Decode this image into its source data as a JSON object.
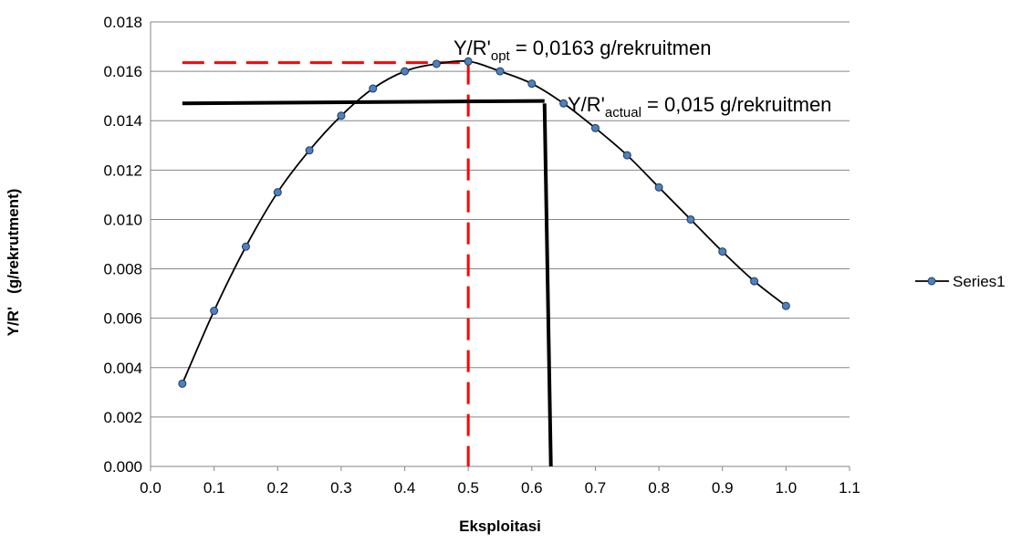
{
  "chart_data": {
    "type": "line",
    "title": "",
    "xlabel": "Eksploitasi",
    "ylabel": "Y/R'   (g/rekrutment)",
    "xlim": [
      0.0,
      1.1
    ],
    "ylim": [
      0.0,
      0.018
    ],
    "x_ticks": [
      "0.0",
      "0.1",
      "0.2",
      "0.3",
      "0.4",
      "0.5",
      "0.6",
      "0.7",
      "0.8",
      "0.9",
      "1.0",
      "1.1"
    ],
    "y_ticks": [
      "0.000",
      "0.002",
      "0.004",
      "0.006",
      "0.008",
      "0.010",
      "0.012",
      "0.014",
      "0.016",
      "0.018"
    ],
    "grid": "horizontal",
    "legend": "right",
    "series": [
      {
        "name": "Series1",
        "line_color": "#000000",
        "marker_color": "#4f81bd",
        "x": [
          0.05,
          0.1,
          0.15,
          0.2,
          0.25,
          0.3,
          0.35,
          0.4,
          0.45,
          0.5,
          0.55,
          0.6,
          0.65,
          0.7,
          0.75,
          0.8,
          0.85,
          0.9,
          0.95,
          1.0
        ],
        "y": [
          0.00335,
          0.0063,
          0.0089,
          0.0111,
          0.0128,
          0.0142,
          0.0153,
          0.016,
          0.0163,
          0.0164,
          0.016,
          0.0155,
          0.0147,
          0.0137,
          0.0126,
          0.0113,
          0.01,
          0.0087,
          0.0075,
          0.0065
        ]
      }
    ],
    "annotations": {
      "opt": {
        "prefix": "Y/R'",
        "sub": "opt",
        "suffix": " = 0,0163 g/rekruitmen",
        "color": "#ff0000",
        "horizontal": {
          "x1": 0.05,
          "x2": 0.5,
          "y": 0.01635
        },
        "vertical": {
          "x": 0.5,
          "y1": 0.01635,
          "y2": 0.0
        }
      },
      "actual": {
        "prefix": "Y/R'",
        "sub": "actual",
        "suffix": " = 0,015 g/rekruitmen",
        "color": "#000000",
        "horizontal": {
          "x1": 0.05,
          "x2": 0.62,
          "y1": 0.0147,
          "y2": 0.0148
        },
        "vertical": {
          "x1": 0.62,
          "y1": 0.0147,
          "x2": 0.63,
          "y2": 0.0
        }
      }
    }
  }
}
